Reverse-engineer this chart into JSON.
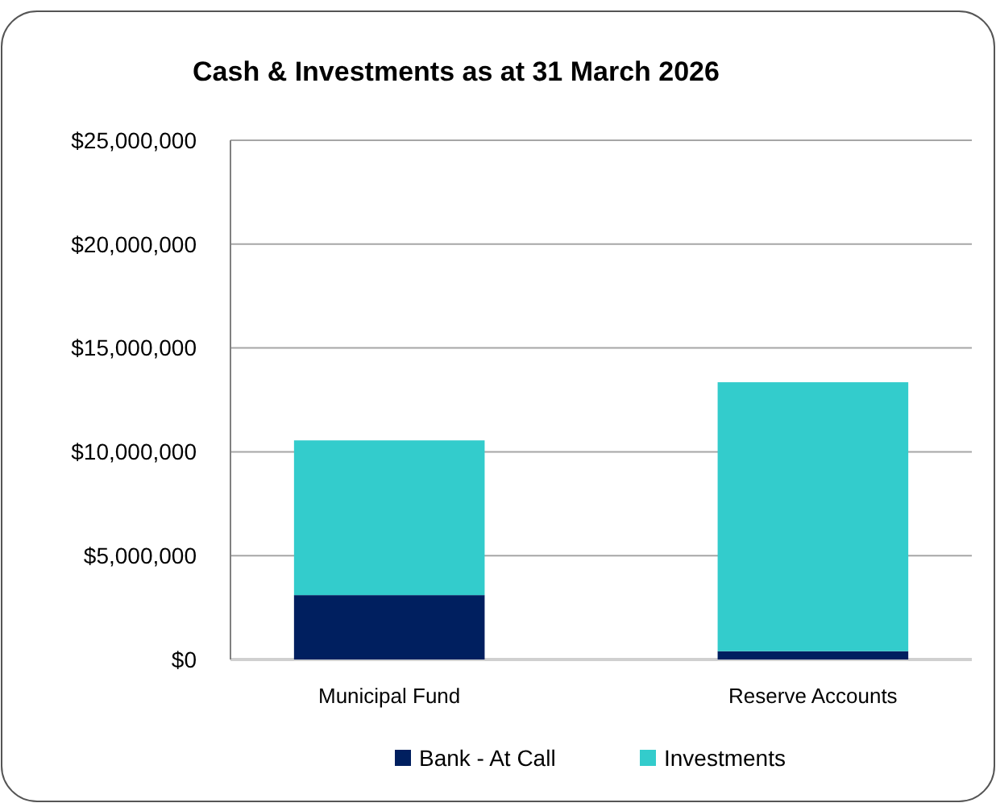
{
  "chart_data": {
    "type": "bar",
    "title": "Cash & Investments as at 31 March 2026",
    "categories": [
      "Municipal Fund",
      "Reserve Accounts"
    ],
    "stacked": true,
    "series": [
      {
        "name": "Bank - At Call",
        "color": "#001f5f",
        "values": [
          3100000,
          400000
        ]
      },
      {
        "name": "Investments",
        "color": "#33cccc",
        "values": [
          7450000,
          12950000
        ]
      }
    ],
    "ylim": [
      0,
      25000000
    ],
    "yticks": [
      {
        "value": 0,
        "label": "$0"
      },
      {
        "value": 5000000,
        "label": "$5,000,000"
      },
      {
        "value": 10000000,
        "label": "$10,000,000"
      },
      {
        "value": 15000000,
        "label": "$15,000,000"
      },
      {
        "value": 20000000,
        "label": "$20,000,000"
      },
      {
        "value": 25000000,
        "label": "$25,000,000"
      }
    ],
    "grid": "y",
    "legend": "bottom"
  }
}
